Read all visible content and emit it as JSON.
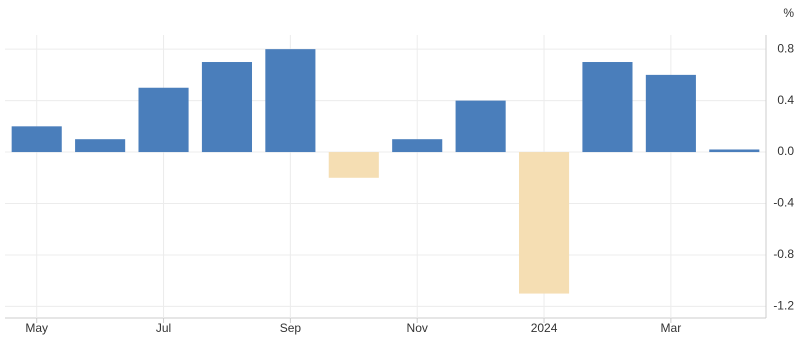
{
  "chart_data": {
    "type": "bar",
    "unit": "%",
    "categories": [
      "May",
      null,
      "Jul",
      null,
      "Sep",
      null,
      "Nov",
      null,
      "2024",
      null,
      "Mar",
      null
    ],
    "values": [
      0.2,
      0.1,
      0.5,
      0.7,
      0.8,
      -0.2,
      0.1,
      0.4,
      -1.1,
      0.7,
      0.6,
      0.02
    ],
    "color": "#4a7ebb",
    "negative_color": "#f5deb3",
    "ylim": [
      -1.29,
      0.91
    ],
    "yticks": [
      0.8,
      0.4,
      {
        "value": 0,
        "label": "0.0"
      },
      -0.4,
      -0.8,
      -1.2
    ],
    "grid": true
  }
}
